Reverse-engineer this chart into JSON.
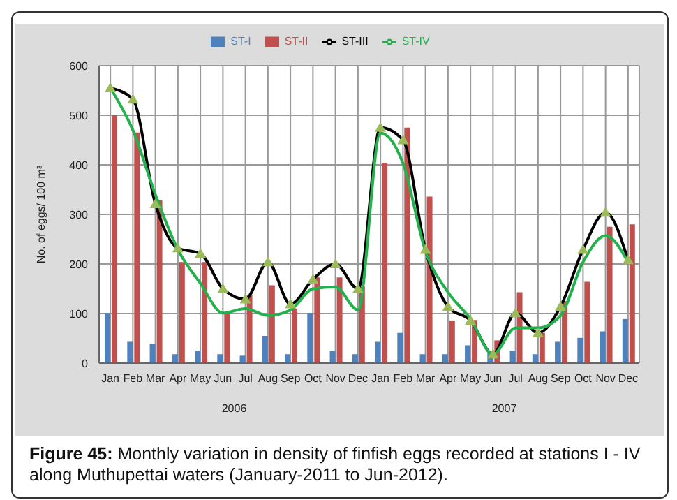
{
  "chart_data": {
    "type": "bar",
    "ylabel": "No. of eggs/ 100 m³",
    "categories": [
      "Jan",
      "Feb",
      "Mar",
      "Apr",
      "May",
      "Jun",
      "Jul",
      "Aug",
      "Sep",
      "Oct",
      "Nov",
      "Dec",
      "Jan",
      "Feb",
      "Mar",
      "Apr",
      "May",
      "Jun",
      "Jul",
      "Aug",
      "Sep",
      "Oct",
      "Nov",
      "Dec"
    ],
    "series": [
      {
        "name": "ST-I",
        "color": "#4f81bd",
        "values": [
          101,
          43,
          39,
          18,
          25,
          18,
          15,
          55,
          18,
          101,
          25,
          18,
          43,
          61,
          18,
          18,
          36,
          21,
          25,
          18,
          43,
          51,
          64,
          89
        ]
      },
      {
        "name": "ST-II",
        "color": "#c0504d",
        "values": [
          500,
          465,
          328,
          204,
          204,
          101,
          137,
          157,
          110,
          173,
          173,
          155,
          403,
          475,
          336,
          86,
          87,
          46,
          143,
          61,
          125,
          164,
          275,
          280
        ]
      },
      {
        "name": "ST-III",
        "type": "line",
        "color": "#000000",
        "marker": "triangle",
        "values": [
          555,
          532,
          321,
          232,
          221,
          150,
          129,
          204,
          119,
          169,
          200,
          150,
          475,
          450,
          229,
          114,
          86,
          18,
          101,
          61,
          114,
          229,
          304,
          208
        ]
      },
      {
        "name": "ST-IV",
        "type": "line",
        "color": "#22b14c",
        "marker": "none",
        "values": [
          555,
          470,
          340,
          229,
          161,
          101,
          110,
          96,
          107,
          150,
          154,
          107,
          464,
          403,
          226,
          143,
          89,
          18,
          71,
          71,
          96,
          204,
          257,
          204
        ]
      }
    ],
    "ylim": [
      0,
      600
    ],
    "yticks": [
      0,
      100,
      200,
      300,
      400,
      500,
      600
    ],
    "grid": true,
    "legend": "top",
    "annotations": [
      "2006",
      "2007",
      "Figure 45: Monthly variation in density of finfish eggs recorded at stations I - IV along Muthupettai waters (January-2011 to Jun-2012)."
    ]
  }
}
